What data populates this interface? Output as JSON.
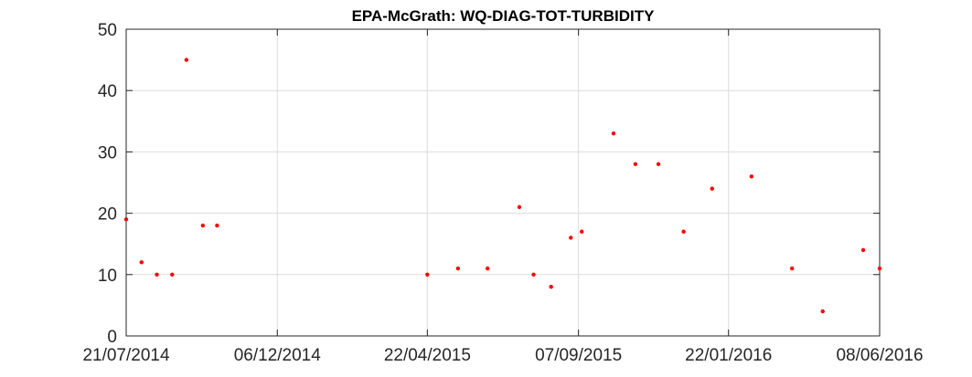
{
  "chart_data": {
    "type": "scatter",
    "title": "EPA-McGrath: WQ-DIAG-TOT-TURBIDITY",
    "xlabel": "",
    "ylabel": "",
    "x_type": "date",
    "xlim": [
      "2014-07-21",
      "2016-06-08"
    ],
    "ylim": [
      0,
      50
    ],
    "grid": true,
    "marker_color": "#ff0000",
    "x_ticks": [
      "2014-07-21",
      "2014-12-06",
      "2015-04-22",
      "2015-09-07",
      "2016-01-22",
      "2016-06-08"
    ],
    "x_tick_labels": [
      "21/07/2014",
      "06/12/2014",
      "22/04/2015",
      "07/09/2015",
      "22/01/2016",
      "08/06/2016"
    ],
    "y_ticks": [
      0,
      10,
      20,
      30,
      40,
      50
    ],
    "y_tick_labels": [
      "0",
      "10",
      "20",
      "30",
      "40",
      "50"
    ],
    "points": [
      {
        "x": "2014-07-21",
        "y": 19
      },
      {
        "x": "2014-08-04",
        "y": 12
      },
      {
        "x": "2014-08-18",
        "y": 10
      },
      {
        "x": "2014-09-01",
        "y": 10
      },
      {
        "x": "2014-09-14",
        "y": 45
      },
      {
        "x": "2014-09-29",
        "y": 18
      },
      {
        "x": "2014-10-12",
        "y": 18
      },
      {
        "x": "2015-04-22",
        "y": 10
      },
      {
        "x": "2015-05-20",
        "y": 11
      },
      {
        "x": "2015-06-16",
        "y": 11
      },
      {
        "x": "2015-07-15",
        "y": 21
      },
      {
        "x": "2015-07-28",
        "y": 10
      },
      {
        "x": "2015-08-13",
        "y": 8
      },
      {
        "x": "2015-08-31",
        "y": 16
      },
      {
        "x": "2015-09-10",
        "y": 17
      },
      {
        "x": "2015-10-09",
        "y": 33
      },
      {
        "x": "2015-10-29",
        "y": 28
      },
      {
        "x": "2015-11-19",
        "y": 28
      },
      {
        "x": "2015-12-12",
        "y": 17
      },
      {
        "x": "2016-01-07",
        "y": 24
      },
      {
        "x": "2016-02-12",
        "y": 26
      },
      {
        "x": "2016-03-20",
        "y": 11
      },
      {
        "x": "2016-04-17",
        "y": 4
      },
      {
        "x": "2016-05-24",
        "y": 14
      },
      {
        "x": "2016-06-08",
        "y": 11
      }
    ]
  }
}
